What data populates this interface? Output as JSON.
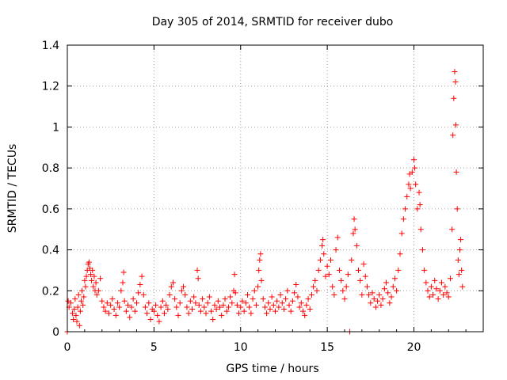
{
  "chart_data": {
    "type": "scatter",
    "title": "Day 305 of 2014, SRMTID for receiver dubo",
    "xlabel": "GPS time / hours",
    "ylabel": "SRMTID / TECUs",
    "xlim": [
      0,
      24
    ],
    "ylim": [
      0,
      1.4
    ],
    "xticks": [
      0,
      5,
      10,
      15,
      20
    ],
    "xtick_labels": [
      "0",
      "5",
      "10",
      "15",
      "20"
    ],
    "yticks": [
      0,
      0.2,
      0.4,
      0.6,
      0.8,
      1,
      1.2,
      1.4
    ],
    "ytick_labels": [
      "0",
      "0.2",
      "0.4",
      "0.6",
      "0.8",
      "1",
      "1.2",
      "1.4"
    ],
    "grid": true,
    "marker": "plus",
    "color": "#ff0000",
    "series": [
      {
        "name": "SRMTID",
        "points": [
          [
            0.0,
            0.0
          ],
          [
            0.05,
            0.15
          ],
          [
            0.1,
            0.12
          ],
          [
            0.2,
            0.14
          ],
          [
            0.3,
            0.09
          ],
          [
            0.35,
            0.06
          ],
          [
            0.4,
            0.11
          ],
          [
            0.45,
            0.16
          ],
          [
            0.5,
            0.08
          ],
          [
            0.55,
            0.05
          ],
          [
            0.6,
            0.12
          ],
          [
            0.65,
            0.18
          ],
          [
            0.7,
            0.03
          ],
          [
            0.75,
            0.1
          ],
          [
            0.8,
            0.15
          ],
          [
            0.85,
            0.2
          ],
          [
            0.9,
            0.13
          ],
          [
            0.95,
            0.17
          ],
          [
            1.0,
            0.25
          ],
          [
            1.05,
            0.22
          ],
          [
            1.1,
            0.27
          ],
          [
            1.15,
            0.3
          ],
          [
            1.2,
            0.33
          ],
          [
            1.25,
            0.34
          ],
          [
            1.3,
            0.31
          ],
          [
            1.35,
            0.28
          ],
          [
            1.4,
            0.25
          ],
          [
            1.45,
            0.3
          ],
          [
            1.5,
            0.22
          ],
          [
            1.55,
            0.27
          ],
          [
            1.6,
            0.2
          ],
          [
            1.65,
            0.24
          ],
          [
            1.7,
            0.18
          ],
          [
            1.8,
            0.2
          ],
          [
            1.9,
            0.26
          ],
          [
            2.0,
            0.15
          ],
          [
            2.1,
            0.12
          ],
          [
            2.2,
            0.1
          ],
          [
            2.3,
            0.14
          ],
          [
            2.4,
            0.09
          ],
          [
            2.5,
            0.13
          ],
          [
            2.6,
            0.16
          ],
          [
            2.7,
            0.11
          ],
          [
            2.8,
            0.08
          ],
          [
            2.9,
            0.14
          ],
          [
            3.0,
            0.12
          ],
          [
            3.1,
            0.2
          ],
          [
            3.2,
            0.24
          ],
          [
            3.25,
            0.29
          ],
          [
            3.3,
            0.15
          ],
          [
            3.4,
            0.1
          ],
          [
            3.5,
            0.13
          ],
          [
            3.6,
            0.07
          ],
          [
            3.7,
            0.12
          ],
          [
            3.8,
            0.16
          ],
          [
            3.9,
            0.1
          ],
          [
            4.0,
            0.14
          ],
          [
            4.1,
            0.19
          ],
          [
            4.2,
            0.23
          ],
          [
            4.3,
            0.27
          ],
          [
            4.4,
            0.18
          ],
          [
            4.5,
            0.12
          ],
          [
            4.6,
            0.09
          ],
          [
            4.7,
            0.14
          ],
          [
            4.8,
            0.06
          ],
          [
            4.9,
            0.11
          ],
          [
            5.0,
            0.1
          ],
          [
            5.1,
            0.13
          ],
          [
            5.2,
            0.08
          ],
          [
            5.3,
            0.05
          ],
          [
            5.4,
            0.12
          ],
          [
            5.5,
            0.15
          ],
          [
            5.6,
            0.09
          ],
          [
            5.7,
            0.13
          ],
          [
            5.8,
            0.11
          ],
          [
            5.9,
            0.18
          ],
          [
            6.0,
            0.22
          ],
          [
            6.1,
            0.24
          ],
          [
            6.2,
            0.16
          ],
          [
            6.3,
            0.12
          ],
          [
            6.4,
            0.08
          ],
          [
            6.5,
            0.14
          ],
          [
            6.6,
            0.2
          ],
          [
            6.7,
            0.22
          ],
          [
            6.8,
            0.18
          ],
          [
            6.9,
            0.12
          ],
          [
            7.0,
            0.09
          ],
          [
            7.1,
            0.15
          ],
          [
            7.2,
            0.11
          ],
          [
            7.3,
            0.17
          ],
          [
            7.4,
            0.14
          ],
          [
            7.5,
            0.3
          ],
          [
            7.55,
            0.26
          ],
          [
            7.6,
            0.13
          ],
          [
            7.7,
            0.1
          ],
          [
            7.8,
            0.16
          ],
          [
            7.9,
            0.12
          ],
          [
            8.0,
            0.09
          ],
          [
            8.1,
            0.14
          ],
          [
            8.2,
            0.17
          ],
          [
            8.3,
            0.1
          ],
          [
            8.4,
            0.06
          ],
          [
            8.5,
            0.13
          ],
          [
            8.6,
            0.11
          ],
          [
            8.7,
            0.15
          ],
          [
            8.8,
            0.12
          ],
          [
            8.9,
            0.08
          ],
          [
            9.0,
            0.13
          ],
          [
            9.1,
            0.16
          ],
          [
            9.2,
            0.1
          ],
          [
            9.3,
            0.12
          ],
          [
            9.4,
            0.17
          ],
          [
            9.5,
            0.14
          ],
          [
            9.6,
            0.2
          ],
          [
            9.65,
            0.28
          ],
          [
            9.7,
            0.19
          ],
          [
            9.8,
            0.13
          ],
          [
            9.9,
            0.09
          ],
          [
            10.0,
            0.12
          ],
          [
            10.1,
            0.15
          ],
          [
            10.2,
            0.1
          ],
          [
            10.3,
            0.14
          ],
          [
            10.4,
            0.18
          ],
          [
            10.5,
            0.12
          ],
          [
            10.6,
            0.09
          ],
          [
            10.7,
            0.16
          ],
          [
            10.8,
            0.2
          ],
          [
            10.9,
            0.13
          ],
          [
            11.0,
            0.22
          ],
          [
            11.05,
            0.3
          ],
          [
            11.1,
            0.35
          ],
          [
            11.15,
            0.38
          ],
          [
            11.2,
            0.25
          ],
          [
            11.3,
            0.16
          ],
          [
            11.4,
            0.12
          ],
          [
            11.5,
            0.09
          ],
          [
            11.6,
            0.14
          ],
          [
            11.7,
            0.11
          ],
          [
            11.8,
            0.17
          ],
          [
            11.9,
            0.13
          ],
          [
            12.0,
            0.1
          ],
          [
            12.1,
            0.15
          ],
          [
            12.2,
            0.12
          ],
          [
            12.3,
            0.18
          ],
          [
            12.4,
            0.14
          ],
          [
            12.5,
            0.11
          ],
          [
            12.6,
            0.16
          ],
          [
            12.7,
            0.2
          ],
          [
            12.8,
            0.13
          ],
          [
            12.9,
            0.1
          ],
          [
            13.0,
            0.15
          ],
          [
            13.1,
            0.19
          ],
          [
            13.2,
            0.23
          ],
          [
            13.3,
            0.17
          ],
          [
            13.4,
            0.12
          ],
          [
            13.5,
            0.14
          ],
          [
            13.6,
            0.1
          ],
          [
            13.7,
            0.08
          ],
          [
            13.8,
            0.13
          ],
          [
            13.9,
            0.16
          ],
          [
            14.0,
            0.11
          ],
          [
            14.1,
            0.18
          ],
          [
            14.2,
            0.22
          ],
          [
            14.3,
            0.25
          ],
          [
            14.4,
            0.2
          ],
          [
            14.5,
            0.3
          ],
          [
            14.6,
            0.35
          ],
          [
            14.7,
            0.42
          ],
          [
            14.75,
            0.45
          ],
          [
            14.8,
            0.38
          ],
          [
            14.9,
            0.27
          ],
          [
            15.0,
            0.32
          ],
          [
            15.1,
            0.28
          ],
          [
            15.2,
            0.35
          ],
          [
            15.3,
            0.22
          ],
          [
            15.4,
            0.18
          ],
          [
            15.5,
            0.4
          ],
          [
            15.6,
            0.46
          ],
          [
            15.7,
            0.3
          ],
          [
            15.8,
            0.25
          ],
          [
            15.9,
            0.2
          ],
          [
            16.0,
            0.16
          ],
          [
            16.1,
            0.22
          ],
          [
            16.2,
            0.28
          ],
          [
            16.3,
            0.0
          ],
          [
            16.4,
            0.35
          ],
          [
            16.5,
            0.48
          ],
          [
            16.55,
            0.55
          ],
          [
            16.6,
            0.5
          ],
          [
            16.7,
            0.42
          ],
          [
            16.8,
            0.3
          ],
          [
            16.9,
            0.25
          ],
          [
            17.0,
            0.18
          ],
          [
            17.1,
            0.33
          ],
          [
            17.2,
            0.27
          ],
          [
            17.3,
            0.22
          ],
          [
            17.4,
            0.18
          ],
          [
            17.5,
            0.14
          ],
          [
            17.6,
            0.19
          ],
          [
            17.7,
            0.16
          ],
          [
            17.8,
            0.12
          ],
          [
            17.9,
            0.15
          ],
          [
            18.0,
            0.18
          ],
          [
            18.1,
            0.13
          ],
          [
            18.2,
            0.16
          ],
          [
            18.3,
            0.21
          ],
          [
            18.4,
            0.24
          ],
          [
            18.5,
            0.19
          ],
          [
            18.6,
            0.14
          ],
          [
            18.7,
            0.17
          ],
          [
            18.8,
            0.22
          ],
          [
            18.9,
            0.26
          ],
          [
            19.0,
            0.2
          ],
          [
            19.1,
            0.3
          ],
          [
            19.2,
            0.38
          ],
          [
            19.3,
            0.48
          ],
          [
            19.4,
            0.55
          ],
          [
            19.5,
            0.6
          ],
          [
            19.6,
            0.66
          ],
          [
            19.7,
            0.72
          ],
          [
            19.75,
            0.77
          ],
          [
            19.8,
            0.7
          ],
          [
            19.9,
            0.78
          ],
          [
            20.0,
            0.84
          ],
          [
            20.05,
            0.8
          ],
          [
            20.1,
            0.72
          ],
          [
            20.2,
            0.6
          ],
          [
            20.3,
            0.68
          ],
          [
            20.35,
            0.62
          ],
          [
            20.4,
            0.5
          ],
          [
            20.5,
            0.4
          ],
          [
            20.6,
            0.3
          ],
          [
            20.7,
            0.24
          ],
          [
            20.8,
            0.2
          ],
          [
            20.9,
            0.17
          ],
          [
            21.0,
            0.22
          ],
          [
            21.1,
            0.18
          ],
          [
            21.2,
            0.25
          ],
          [
            21.3,
            0.21
          ],
          [
            21.4,
            0.16
          ],
          [
            21.5,
            0.2
          ],
          [
            21.6,
            0.24
          ],
          [
            21.7,
            0.18
          ],
          [
            21.8,
            0.22
          ],
          [
            21.9,
            0.19
          ],
          [
            22.0,
            0.17
          ],
          [
            22.1,
            0.26
          ],
          [
            22.2,
            0.5
          ],
          [
            22.25,
            0.96
          ],
          [
            22.3,
            1.14
          ],
          [
            22.35,
            1.27
          ],
          [
            22.4,
            1.22
          ],
          [
            22.42,
            1.01
          ],
          [
            22.45,
            0.78
          ],
          [
            22.5,
            0.6
          ],
          [
            22.55,
            0.35
          ],
          [
            22.6,
            0.28
          ],
          [
            22.65,
            0.4
          ],
          [
            22.7,
            0.45
          ],
          [
            22.75,
            0.3
          ],
          [
            22.8,
            0.22
          ]
        ]
      }
    ]
  }
}
